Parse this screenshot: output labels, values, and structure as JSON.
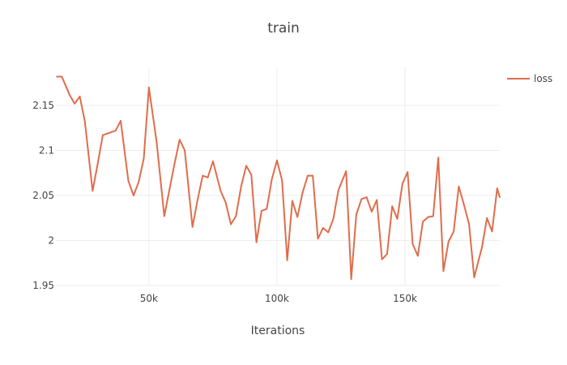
{
  "chart_data": {
    "type": "line",
    "title": "train",
    "xlabel": "Iterations",
    "ylabel": "",
    "xlim": [
      14000,
      187000
    ],
    "ylim": [
      1.95,
      2.2
    ],
    "x_ticks": [
      {
        "value": 50000,
        "label": "50k"
      },
      {
        "value": 100000,
        "label": "100k"
      },
      {
        "value": 150000,
        "label": "150k"
      }
    ],
    "y_ticks": [
      {
        "value": 1.95,
        "label": "1.95"
      },
      {
        "value": 2.0,
        "label": "2"
      },
      {
        "value": 2.05,
        "label": "2.05"
      },
      {
        "value": 2.1,
        "label": "2.1"
      },
      {
        "value": 2.15,
        "label": "2.15"
      }
    ],
    "grid": true,
    "legend_position": "top-right",
    "series": [
      {
        "name": "loss",
        "color": "#e06c4c",
        "x": [
          14000,
          16000,
          19000,
          21000,
          23000,
          25000,
          28000,
          30000,
          32000,
          35000,
          37000,
          39000,
          42000,
          44000,
          46000,
          48000,
          50000,
          53000,
          56000,
          58000,
          60000,
          62000,
          64000,
          67000,
          69000,
          71000,
          73000,
          75000,
          78000,
          80000,
          82000,
          84000,
          86000,
          88000,
          90000,
          92000,
          94000,
          96000,
          98000,
          100000,
          102000,
          104000,
          106000,
          108000,
          110000,
          112000,
          114000,
          116000,
          118000,
          120000,
          122000,
          124000,
          127000,
          129000,
          131000,
          133000,
          135000,
          137000,
          139000,
          141000,
          143000,
          145000,
          147000,
          149000,
          151000,
          153000,
          155000,
          157000,
          159000,
          161000,
          163000,
          165000,
          167000,
          169000,
          171000,
          173000,
          175000,
          177000,
          180000,
          182000,
          184000,
          186000,
          187000
        ],
        "y": [
          2.182,
          2.182,
          2.162,
          2.152,
          2.16,
          2.132,
          2.055,
          2.085,
          2.117,
          2.12,
          2.122,
          2.133,
          2.066,
          2.05,
          2.065,
          2.091,
          2.17,
          2.11,
          2.027,
          2.056,
          2.085,
          2.112,
          2.1,
          2.015,
          2.045,
          2.072,
          2.07,
          2.088,
          2.055,
          2.042,
          2.018,
          2.027,
          2.06,
          2.083,
          2.073,
          1.998,
          2.033,
          2.035,
          2.068,
          2.089,
          2.067,
          1.978,
          2.044,
          2.026,
          2.053,
          2.072,
          2.072,
          2.002,
          2.014,
          2.009,
          2.024,
          2.056,
          2.077,
          1.957,
          2.029,
          2.046,
          2.048,
          2.032,
          2.045,
          1.979,
          1.985,
          2.038,
          2.024,
          2.063,
          2.076,
          1.996,
          1.983,
          2.021,
          2.026,
          2.027,
          2.092,
          1.966,
          1.999,
          2.01,
          2.06,
          2.04,
          2.018,
          1.959,
          1.992,
          2.025,
          2.01,
          2.058,
          2.048
        ]
      }
    ]
  }
}
